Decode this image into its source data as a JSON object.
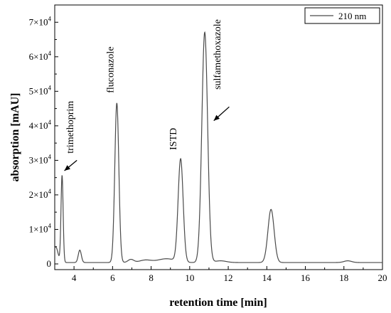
{
  "chart_data": {
    "type": "line",
    "title": "",
    "xlabel": "retention time [min]",
    "ylabel": "absorption [mAU]",
    "xlim": [
      3,
      20
    ],
    "ylim": [
      0,
      75000
    ],
    "x_ticks": [
      4,
      6,
      8,
      10,
      12,
      14,
      16,
      18,
      20
    ],
    "y_ticks": [
      0,
      10000,
      20000,
      30000,
      40000,
      50000,
      60000,
      70000
    ],
    "y_tick_labels": [
      {
        "mant": "0",
        "exp": ""
      },
      {
        "mant": "1×10",
        "exp": "4"
      },
      {
        "mant": "2×10",
        "exp": "4"
      },
      {
        "mant": "3×10",
        "exp": "4"
      },
      {
        "mant": "4×10",
        "exp": "4"
      },
      {
        "mant": "5×10",
        "exp": "4"
      },
      {
        "mant": "6×10",
        "exp": "4"
      },
      {
        "mant": "7×10",
        "exp": "4"
      }
    ],
    "legend": {
      "position": "top-right",
      "entries": [
        "210 nm"
      ]
    },
    "grid": false,
    "series": [
      {
        "name": "210 nm",
        "color": "#4a4a4a",
        "baseline": 400,
        "peaks": [
          {
            "rt": 3.05,
            "height": 4500,
            "width": 0.12
          },
          {
            "rt": 3.38,
            "height": 25200,
            "width": 0.055
          },
          {
            "rt": 4.3,
            "height": 3600,
            "width": 0.08
          },
          {
            "rt": 6.22,
            "height": 46200,
            "width": 0.105
          },
          {
            "rt": 6.95,
            "height": 900,
            "width": 0.15
          },
          {
            "rt": 7.7,
            "height": 700,
            "width": 0.3
          },
          {
            "rt": 8.8,
            "height": 1100,
            "width": 0.45
          },
          {
            "rt": 9.53,
            "height": 29800,
            "width": 0.13
          },
          {
            "rt": 10.78,
            "height": 66700,
            "width": 0.15
          },
          {
            "rt": 11.6,
            "height": 500,
            "width": 0.3
          },
          {
            "rt": 14.22,
            "height": 15400,
            "width": 0.16
          },
          {
            "rt": 18.2,
            "height": 500,
            "width": 0.2
          }
        ]
      }
    ],
    "annotations": [
      {
        "text": "trimethoprim",
        "x": 3.95,
        "y": 32000,
        "arrow_from": [
          4.15,
          30000
        ],
        "arrow_to": [
          3.5,
          27000
        ]
      },
      {
        "text": "fluconazole",
        "x": 6.05,
        "y": 49500
      },
      {
        "text": "ISTD",
        "x": 9.3,
        "y": 33000
      },
      {
        "text": "sulfamethoxazole",
        "x": 11.6,
        "y": 50500,
        "arrow_from": [
          12.05,
          45500
        ],
        "arrow_to": [
          11.25,
          41500
        ]
      }
    ]
  }
}
